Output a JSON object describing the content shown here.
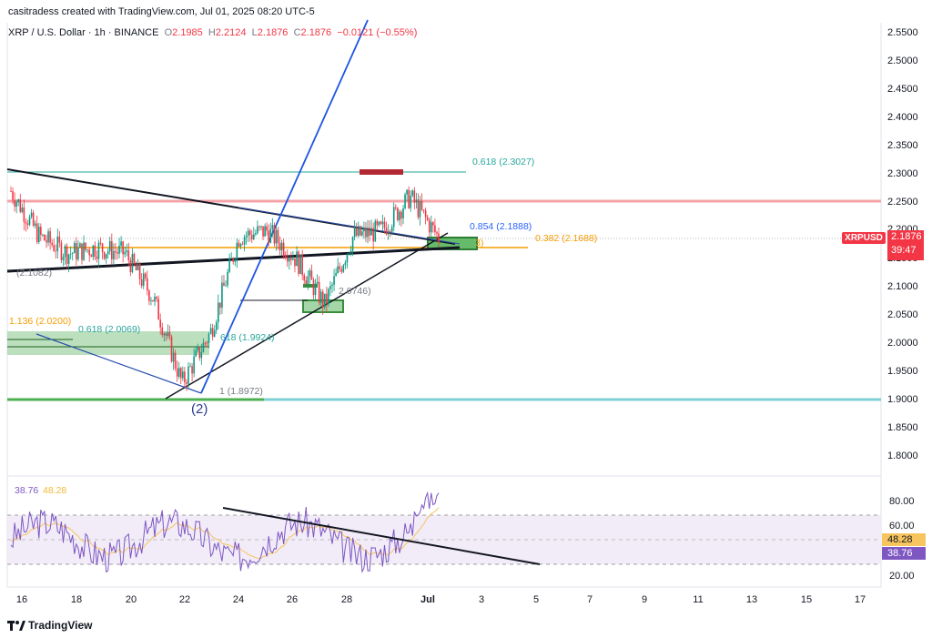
{
  "header": {
    "credit": "casitradess created with TradingView.com, Jul 01, 2025 08:20 UTC-5"
  },
  "legend": {
    "symbol": "XRP / U.S. Dollar · 1h · BINANCE",
    "o_label": "O",
    "o_value": "2.1985",
    "h_label": "H",
    "h_value": "2.2124",
    "l_label": "L",
    "l_value": "2.1876",
    "c_label": "C",
    "c_value": "2.1876",
    "change": "−0.0121 (−0.55%)"
  },
  "price_axis": {
    "labels": [
      "2.5500",
      "2.5000",
      "2.4500",
      "2.4000",
      "2.3500",
      "2.3000",
      "2.2500",
      "2.2000",
      "2.1500",
      "2.1000",
      "2.0500",
      "2.0000",
      "1.9500",
      "1.9000",
      "1.8500",
      "1.8000"
    ]
  },
  "current_price": {
    "ticker": "XRPUSD",
    "price": "2.1876",
    "countdown": "39:47",
    "color": "#f23645"
  },
  "time_axis": {
    "labels": [
      "16",
      "18",
      "20",
      "22",
      "24",
      "26",
      "28",
      "Jul",
      "3",
      "5",
      "7",
      "9",
      "11",
      "13",
      "15",
      "17"
    ]
  },
  "fib_labels": {
    "f618_top": "0.618 (2.3027)",
    "f854": "0.854 (2.1888)",
    "f382": "0.382 (2.1688)",
    "f_hidden": "3)",
    "f_left": "(2.1082)",
    "f_2746": "2.0746)",
    "f136": "1.136 (2.0200)",
    "f618_mid": "0.618 (2.0069)",
    "f618_b": "618 (1.9924)",
    "f1": "1 (1.8972)",
    "wave": "(2)"
  },
  "rsi": {
    "rsi_value": "38.76",
    "ma_value": "48.28",
    "axis_labels": [
      "80.00",
      "60.00",
      "20.00"
    ],
    "rsi_color": "#7e57c2",
    "ma_color": "#f7c55e"
  },
  "chart_data": {
    "type": "candlestick",
    "title": "XRP / U.S. Dollar · 1h · BINANCE",
    "ylim": [
      1.75,
      2.56
    ],
    "x": [
      "16",
      "17",
      "18",
      "19",
      "20",
      "21",
      "22",
      "23",
      "24",
      "25",
      "26",
      "27",
      "28",
      "29",
      "30",
      "Jul"
    ],
    "close_approx": [
      2.27,
      2.19,
      2.16,
      2.17,
      2.16,
      2.08,
      1.93,
      2.02,
      2.19,
      2.2,
      2.15,
      2.07,
      2.19,
      2.2,
      2.26,
      2.1876
    ],
    "key_levels": [
      2.3027,
      2.25,
      2.1888,
      2.1688,
      2.02,
      2.0069,
      1.9924,
      1.8972
    ],
    "colors": {
      "up": "#089981",
      "down": "#f23645",
      "fib_teal": "#26a69a",
      "fib_blue": "#2962ff",
      "fib_orange": "#f59d00",
      "resistance": "#f7a8ad"
    }
  },
  "footer": {
    "brand": "TradingView"
  }
}
